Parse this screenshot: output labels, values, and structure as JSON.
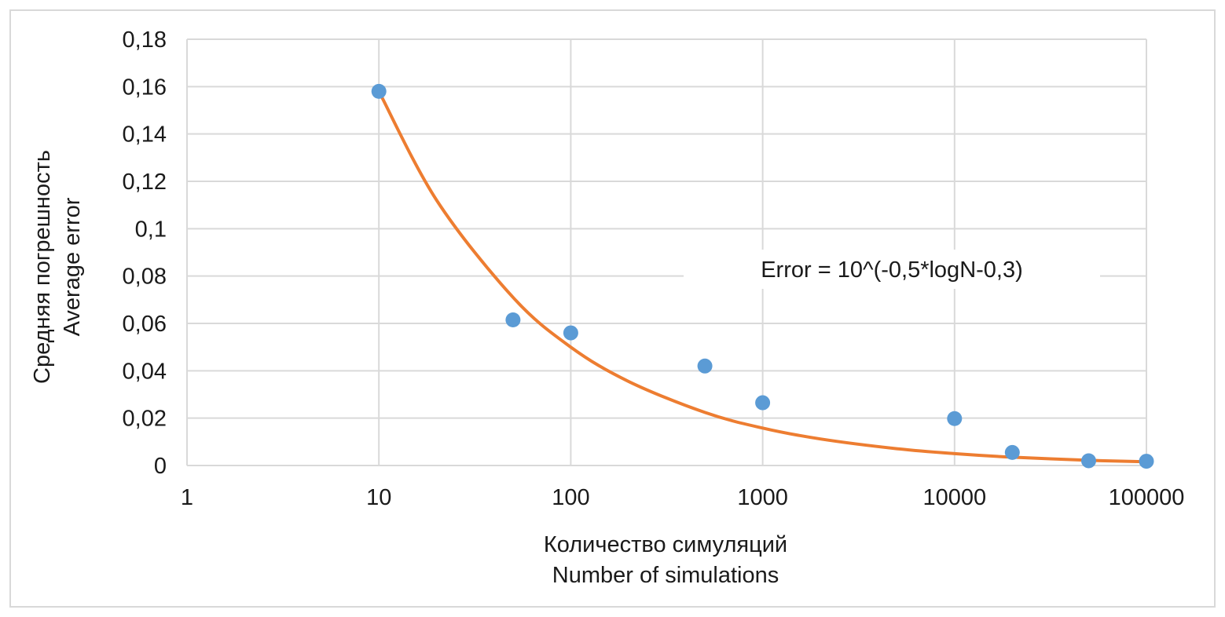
{
  "chart_data": {
    "type": "scatter",
    "x_scale": "log",
    "xlim": [
      1,
      100000
    ],
    "ylim": [
      0,
      0.18
    ],
    "x_ticks": [
      "1",
      "10",
      "100",
      "1000",
      "10000",
      "100000"
    ],
    "y_ticks": [
      "0",
      "0,02",
      "0,04",
      "0,06",
      "0,08",
      "0,1",
      "0,12",
      "0,14",
      "0,16",
      "0,18"
    ],
    "xlabel_lines": [
      "Количество симуляций",
      "Number of simulations"
    ],
    "ylabel_lines": [
      "Средняя погрешность",
      "Average error"
    ],
    "annotation": "Error = 10^(-0,5*logN-0,3)",
    "grid": true,
    "series": [
      {
        "kind": "points",
        "color": "#5b9bd5",
        "x": [
          10,
          50,
          100,
          500,
          1000,
          10000,
          20000,
          50000,
          100000
        ],
        "y": [
          0.158,
          0.0615,
          0.056,
          0.042,
          0.0265,
          0.0198,
          0.0055,
          0.002,
          0.0018
        ]
      },
      {
        "kind": "line",
        "color": "#ed7d31",
        "x": [
          10,
          20,
          50,
          100,
          200,
          500,
          1000,
          2000,
          5000,
          10000,
          20000,
          50000,
          100000
        ],
        "y": [
          0.158,
          0.112,
          0.071,
          0.05,
          0.0355,
          0.0224,
          0.0158,
          0.0112,
          0.0071,
          0.005,
          0.0035,
          0.0022,
          0.0016
        ]
      }
    ]
  }
}
